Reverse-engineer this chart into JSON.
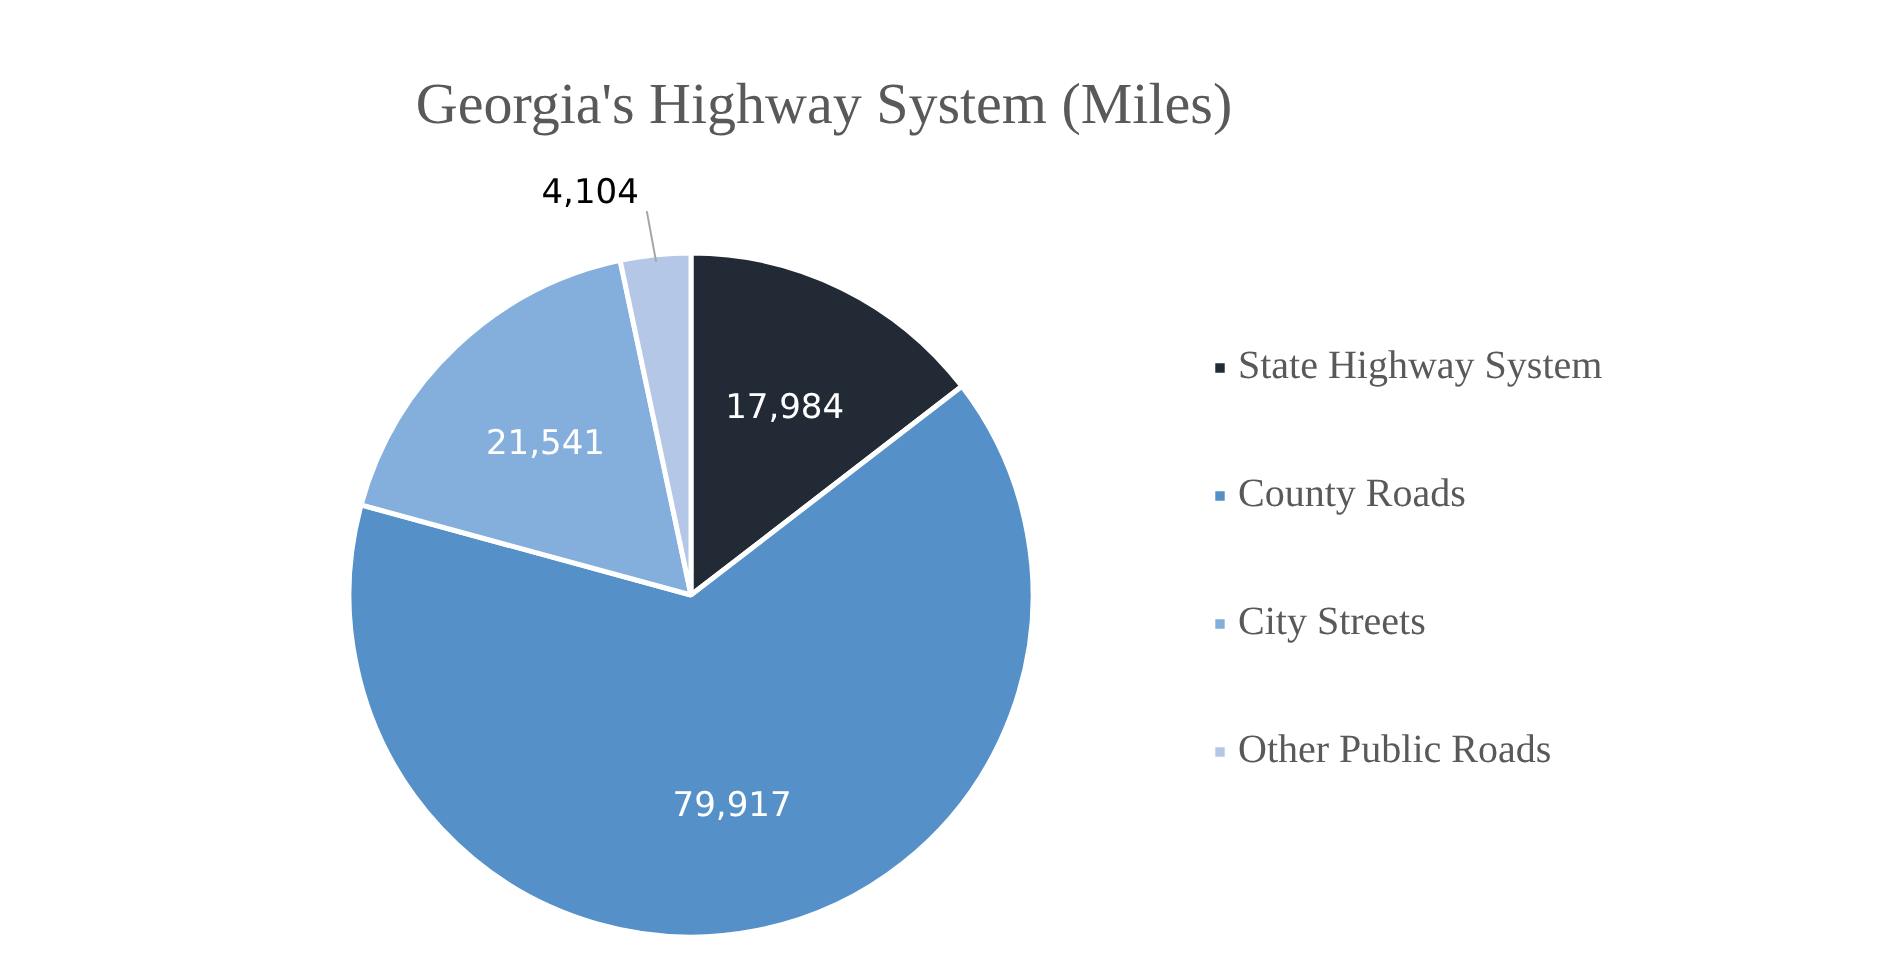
{
  "chart_data": {
    "type": "pie",
    "title": "Georgia's Highway System (Miles)",
    "categories": [
      "State Highway System",
      "County Roads",
      "City Streets",
      "Other Public Roads"
    ],
    "values": [
      17984,
      79917,
      21541,
      4104
    ],
    "colors": [
      "#222a35",
      "#5591c8",
      "#84afdc",
      "#b4c7e7"
    ],
    "value_labels": [
      "17,984",
      "79,917",
      "21,541",
      "4,104"
    ],
    "legend": "right"
  }
}
